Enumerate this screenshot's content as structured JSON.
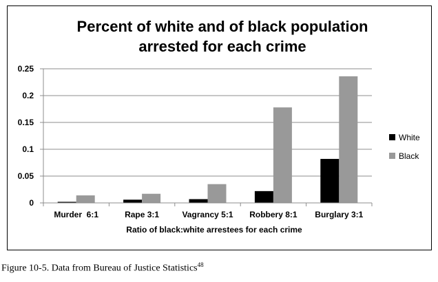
{
  "chart_data": {
    "type": "bar",
    "title": "Percent of white and of black population arrested for each crime",
    "title_lines": [
      "Percent of white and of black population",
      "arrested for each crime"
    ],
    "xlabel": "Ratio of black:white arrestees for each crime",
    "ylabel": "",
    "categories": [
      "Murder  6:1",
      "Rape 3:1",
      "Vagrancy 5:1",
      "Robbery 8:1",
      "Burglary 3:1"
    ],
    "series": [
      {
        "name": "White",
        "color": "#000000",
        "values": [
          0.002,
          0.006,
          0.007,
          0.022,
          0.082
        ]
      },
      {
        "name": "Black",
        "color": "#999999",
        "values": [
          0.014,
          0.017,
          0.035,
          0.178,
          0.236
        ]
      }
    ],
    "ylim": [
      0,
      0.25
    ],
    "yticks": [
      "0",
      "0.05",
      "0.1",
      "0.15",
      "0.2",
      "0.25"
    ],
    "ytick_values": [
      0,
      0.05,
      0.1,
      0.15,
      0.2,
      0.25
    ],
    "grid": true,
    "legend_position": "right"
  },
  "caption": {
    "text": "Figure 10-5. Data from Bureau of Justice Statistics",
    "superscript": "48"
  }
}
